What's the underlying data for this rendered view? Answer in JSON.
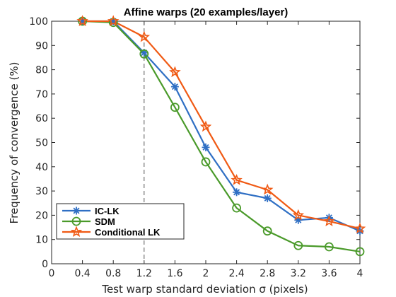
{
  "chart_data": {
    "type": "line",
    "title": "Affine warps (20 examples/layer)",
    "xlabel": "Test warp standard deviation σ (pixels)",
    "ylabel": "Frequency of convergence (%)",
    "xlim": [
      0,
      4
    ],
    "ylim": [
      0,
      100
    ],
    "xticks": [
      "0",
      "0.4",
      "0.8",
      "1.2",
      "1.6",
      "2",
      "2.4",
      "2.8",
      "3.2",
      "3.6",
      "4"
    ],
    "yticks": [
      "0",
      "10",
      "20",
      "30",
      "40",
      "50",
      "60",
      "70",
      "80",
      "90",
      "100"
    ],
    "x": [
      0.4,
      0.8,
      1.2,
      1.6,
      2.0,
      2.4,
      2.8,
      3.2,
      3.6,
      4.0
    ],
    "reference_line_x": 1.2,
    "grid": false,
    "legend_position": "bottom-left",
    "series": [
      {
        "name": "IC-LK",
        "marker": "asterisk",
        "color": "#2f6fc4",
        "values": [
          100,
          100,
          87,
          73,
          48,
          29.5,
          27,
          18,
          19,
          13.5
        ]
      },
      {
        "name": "SDM",
        "marker": "circle",
        "color": "#4a9a2a",
        "values": [
          100,
          99.5,
          86.5,
          64.5,
          42,
          23,
          13.5,
          7.5,
          7,
          5
        ]
      },
      {
        "name": "Conditional LK",
        "marker": "star",
        "color": "#f05a14",
        "values": [
          100,
          100,
          93.5,
          79,
          56.5,
          34.5,
          30.5,
          20,
          17.5,
          14.5
        ]
      }
    ]
  }
}
